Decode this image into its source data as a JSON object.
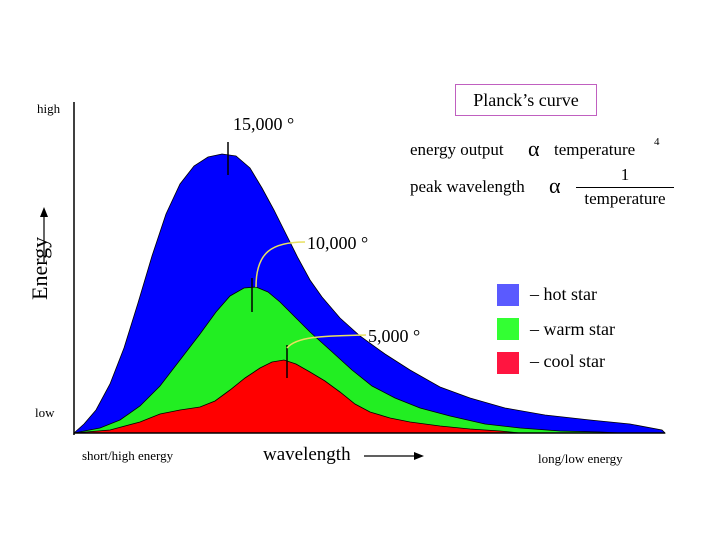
{
  "chart_data": {
    "type": "area",
    "title": "Planck’s curve",
    "xlabel": "wavelength",
    "ylabel": "Energy",
    "x_axis_ends": {
      "left": "short/high energy",
      "right": "long/low energy"
    },
    "y_axis_ends": {
      "top": "high",
      "bottom": "low"
    },
    "series": [
      {
        "name": "– hot star",
        "color": "#0000ff",
        "legend_color": "#5a5aff",
        "peak_label": "15,000 °"
      },
      {
        "name": "– warm star",
        "color": "#22ee22",
        "legend_color": "#33ff33",
        "peak_label": "10,000 °"
      },
      {
        "name": "– cool star",
        "color": "#ff0000",
        "legend_color": "#ff1540",
        "peak_label": "5,000 °"
      }
    ],
    "legend_position": "right",
    "grid": false
  },
  "relations": {
    "energy_output_label": "energy output",
    "temperature_label": "temperature",
    "temperature_exponent": "4",
    "peak_wavelength_label": "peak wavelength",
    "proportional_symbol": "α",
    "fraction_numerator": "1",
    "fraction_denominator": "temperature"
  }
}
